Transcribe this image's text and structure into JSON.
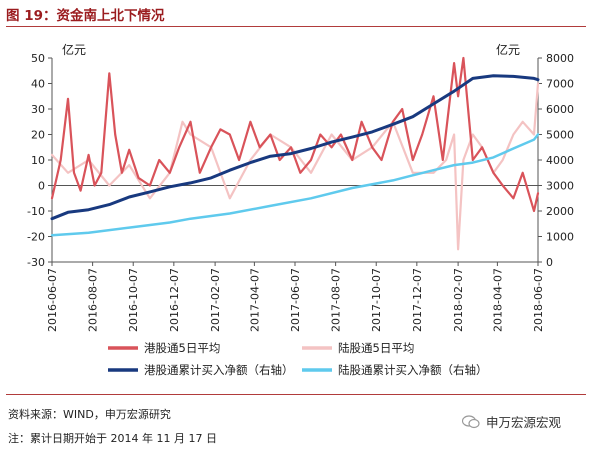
{
  "figure": {
    "title": "图 19：资金南上北下情况",
    "source": "资料来源：WIND，申万宏源研究",
    "note": "注：累计日期开始于 2014 年 11 月 17 日",
    "watermark": "申万宏源宏观",
    "watermark_icon": "wechat-icon"
  },
  "colors": {
    "hk5": "#d9535a",
    "sh5": "#f4c3c3",
    "hkcum": "#18397f",
    "shcum": "#5fcaed",
    "accent": "#9b1c1f"
  },
  "chart_data": {
    "type": "line",
    "left_unit": "亿元",
    "right_unit": "亿元",
    "ylim_left": [
      -30,
      50
    ],
    "ylim_right": [
      0,
      8000
    ],
    "yticks_left": [
      "50",
      "40",
      "30",
      "20",
      "10",
      "0",
      "-10",
      "-20",
      "-30"
    ],
    "yticks_right": [
      "8000",
      "7000",
      "6000",
      "5000",
      "4000",
      "3000",
      "2000",
      "1000",
      "0"
    ],
    "x_ticks": [
      "2016-06-07",
      "2016-08-07",
      "2016-10-07",
      "2016-12-07",
      "2017-02-07",
      "2017-04-07",
      "2017-06-07",
      "2017-08-07",
      "2017-10-07",
      "2017-12-07",
      "2018-02-07",
      "2018-04-07",
      "2018-06-07"
    ],
    "legend": [
      {
        "key": "hk5",
        "label": "港股通5日平均"
      },
      {
        "key": "sh5",
        "label": "陆股通5日平均"
      },
      {
        "key": "hkcum",
        "label": "港股通累计买入净额（右轴）"
      },
      {
        "key": "shcum",
        "label": "陆股通累计买入净额（右轴）"
      }
    ],
    "series": [
      {
        "key": "hk5",
        "name": "港股通5日平均",
        "axis": "left",
        "x": [
          "2016-06-07",
          "2016-06-20",
          "2016-07-01",
          "2016-07-10",
          "2016-07-20",
          "2016-08-01",
          "2016-08-10",
          "2016-08-20",
          "2016-09-01",
          "2016-09-10",
          "2016-09-20",
          "2016-10-01",
          "2016-10-15",
          "2016-11-01",
          "2016-11-15",
          "2016-12-01",
          "2016-12-15",
          "2017-01-01",
          "2017-01-15",
          "2017-02-01",
          "2017-02-15",
          "2017-03-01",
          "2017-03-15",
          "2017-04-01",
          "2017-04-15",
          "2017-05-01",
          "2017-05-15",
          "2017-06-01",
          "2017-06-15",
          "2017-07-01",
          "2017-07-15",
          "2017-08-01",
          "2017-08-15",
          "2017-09-01",
          "2017-09-15",
          "2017-10-01",
          "2017-10-15",
          "2017-11-01",
          "2017-11-15",
          "2017-12-01",
          "2017-12-15",
          "2018-01-01",
          "2018-01-15",
          "2018-02-01",
          "2018-02-07",
          "2018-02-15",
          "2018-03-01",
          "2018-03-15",
          "2018-04-01",
          "2018-04-15",
          "2018-05-01",
          "2018-05-15",
          "2018-06-01",
          "2018-06-07"
        ],
        "values": [
          -5,
          10,
          34,
          5,
          -2,
          12,
          0,
          5,
          44,
          20,
          5,
          14,
          3,
          0,
          10,
          5,
          15,
          25,
          5,
          15,
          22,
          20,
          10,
          25,
          15,
          20,
          10,
          15,
          5,
          10,
          20,
          15,
          20,
          10,
          25,
          15,
          10,
          25,
          30,
          10,
          20,
          35,
          10,
          48,
          35,
          50,
          10,
          15,
          5,
          0,
          -5,
          5,
          -10,
          -3
        ]
      },
      {
        "key": "sh5",
        "name": "陆股通5日平均",
        "axis": "left",
        "x": [
          "2016-06-07",
          "2016-07-01",
          "2016-08-01",
          "2016-09-01",
          "2016-10-01",
          "2016-11-01",
          "2016-12-01",
          "2016-12-20",
          "2017-01-01",
          "2017-02-01",
          "2017-03-01",
          "2017-04-01",
          "2017-05-01",
          "2017-06-01",
          "2017-07-01",
          "2017-08-01",
          "2017-09-01",
          "2017-10-01",
          "2017-11-01",
          "2017-12-01",
          "2018-01-01",
          "2018-01-20",
          "2018-02-01",
          "2018-02-07",
          "2018-02-15",
          "2018-03-01",
          "2018-03-15",
          "2018-04-01",
          "2018-04-15",
          "2018-05-01",
          "2018-05-15",
          "2018-06-01",
          "2018-06-07"
        ],
        "values": [
          12,
          5,
          10,
          0,
          8,
          -5,
          5,
          25,
          20,
          15,
          -5,
          10,
          20,
          15,
          5,
          20,
          10,
          15,
          25,
          5,
          5,
          10,
          20,
          -25,
          10,
          20,
          15,
          5,
          10,
          20,
          25,
          20,
          40
        ]
      },
      {
        "key": "hkcum",
        "name": "港股通累计买入净额（右轴）",
        "axis": "right",
        "x": [
          "2016-06-07",
          "2016-07-01",
          "2016-08-01",
          "2016-09-01",
          "2016-10-01",
          "2016-11-01",
          "2016-12-01",
          "2017-01-01",
          "2017-02-01",
          "2017-03-01",
          "2017-04-01",
          "2017-05-01",
          "2017-06-01",
          "2017-07-01",
          "2017-08-01",
          "2017-09-01",
          "2017-10-01",
          "2017-11-01",
          "2017-12-01",
          "2018-01-01",
          "2018-02-01",
          "2018-02-15",
          "2018-03-01",
          "2018-04-01",
          "2018-05-01",
          "2018-06-01",
          "2018-06-07"
        ],
        "values": [
          1700,
          1950,
          2050,
          2250,
          2550,
          2750,
          2950,
          3100,
          3300,
          3600,
          3900,
          4150,
          4250,
          4450,
          4700,
          4900,
          5100,
          5400,
          5700,
          6200,
          6700,
          6950,
          7200,
          7300,
          7280,
          7200,
          7150
        ]
      },
      {
        "key": "shcum",
        "name": "陆股通累计买入净额（右轴）",
        "axis": "right",
        "x": [
          "2016-06-07",
          "2016-08-01",
          "2016-10-01",
          "2016-12-01",
          "2017-01-01",
          "2017-03-01",
          "2017-05-01",
          "2017-07-01",
          "2017-09-01",
          "2017-11-01",
          "2017-12-01",
          "2018-01-01",
          "2018-02-01",
          "2018-03-01",
          "2018-04-01",
          "2018-05-01",
          "2018-06-01",
          "2018-06-07"
        ],
        "values": [
          1050,
          1150,
          1350,
          1550,
          1700,
          1900,
          2200,
          2500,
          2900,
          3200,
          3400,
          3600,
          3800,
          3900,
          4100,
          4450,
          4800,
          5000
        ]
      }
    ]
  }
}
